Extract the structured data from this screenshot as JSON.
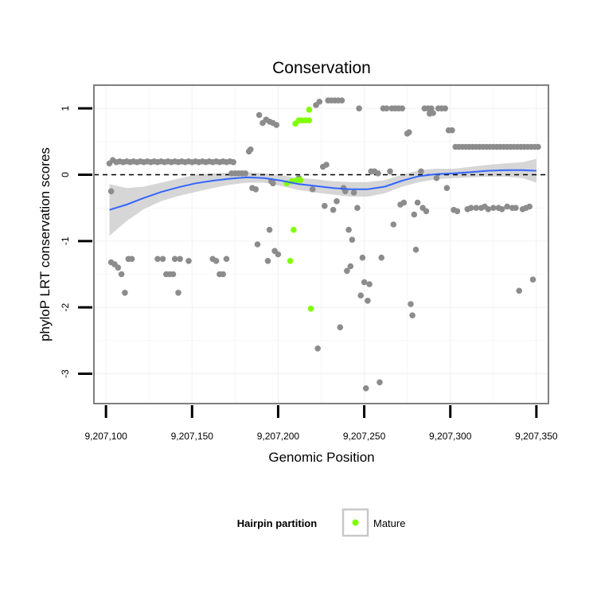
{
  "chart_data": {
    "type": "scatter",
    "title": "Conservation",
    "xlabel": "Genomic Position",
    "ylabel": "phyloP LRT conservation scores",
    "xlim": [
      9207093,
      9207357
    ],
    "ylim": [
      -3.45,
      1.35
    ],
    "x_ticks": [
      9207100,
      9207150,
      9207200,
      9207250,
      9207300,
      9207350
    ],
    "x_tick_labels": [
      "9,207,100",
      "9,207,150",
      "9,207,200",
      "9,207,250",
      "9,207,300",
      "9,207,350"
    ],
    "y_ticks": [
      -3,
      -2,
      -1,
      0,
      1
    ],
    "y_tick_labels": [
      "-3",
      "-2",
      "-1",
      "0",
      "1"
    ],
    "reference_line": {
      "y": 0,
      "style": "dashed",
      "color": "#000000"
    },
    "colors": {
      "background": "#ffffff",
      "grid": "#f2f2f2",
      "other": "#8c8c8c",
      "mature": "#80ff00",
      "smooth": "#3366ff",
      "ribbon": "#c8c8c8",
      "border": "#7f7f7f"
    },
    "legend": {
      "title": "Hairpin partition",
      "position": "bottom",
      "entries": [
        {
          "label": "Mature",
          "color": "#80ff00"
        }
      ]
    },
    "series": [
      {
        "name": "Other",
        "color": "#8c8c8c",
        "points": [
          [
            9207102,
            0.17
          ],
          [
            9207104,
            0.22
          ],
          [
            9207106,
            0.19
          ],
          [
            9207108,
            0.2
          ],
          [
            9207110,
            0.19
          ],
          [
            9207112,
            0.2
          ],
          [
            9207114,
            0.19
          ],
          [
            9207116,
            0.2
          ],
          [
            9207118,
            0.19
          ],
          [
            9207120,
            0.2
          ],
          [
            9207122,
            0.19
          ],
          [
            9207124,
            0.2
          ],
          [
            9207126,
            0.19
          ],
          [
            9207128,
            0.2
          ],
          [
            9207130,
            0.19
          ],
          [
            9207132,
            0.2
          ],
          [
            9207134,
            0.19
          ],
          [
            9207136,
            0.2
          ],
          [
            9207138,
            0.19
          ],
          [
            9207140,
            0.2
          ],
          [
            9207142,
            0.19
          ],
          [
            9207144,
            0.2
          ],
          [
            9207146,
            0.19
          ],
          [
            9207148,
            0.2
          ],
          [
            9207150,
            0.19
          ],
          [
            9207152,
            0.2
          ],
          [
            9207154,
            0.19
          ],
          [
            9207156,
            0.2
          ],
          [
            9207158,
            0.19
          ],
          [
            9207160,
            0.2
          ],
          [
            9207162,
            0.19
          ],
          [
            9207164,
            0.2
          ],
          [
            9207166,
            0.19
          ],
          [
            9207168,
            0.2
          ],
          [
            9207170,
            0.19
          ],
          [
            9207172,
            0.2
          ],
          [
            9207174,
            0.19
          ],
          [
            9207103,
            -0.25
          ],
          [
            9207103,
            -1.32
          ],
          [
            9207105,
            -1.35
          ],
          [
            9207107,
            -1.4
          ],
          [
            9207109,
            -1.5
          ],
          [
            9207111,
            -1.78
          ],
          [
            9207113,
            -1.27
          ],
          [
            9207115,
            -1.27
          ],
          [
            9207130,
            -1.27
          ],
          [
            9207133,
            -1.27
          ],
          [
            9207135,
            -1.5
          ],
          [
            9207137,
            -1.5
          ],
          [
            9207139,
            -1.5
          ],
          [
            9207140,
            -1.27
          ],
          [
            9207143,
            -1.27
          ],
          [
            9207142,
            -1.78
          ],
          [
            9207148,
            -1.3
          ],
          [
            9207162,
            -1.27
          ],
          [
            9207164,
            -1.3
          ],
          [
            9207166,
            -1.5
          ],
          [
            9207168,
            -1.5
          ],
          [
            9207170,
            -1.27
          ],
          [
            9207173,
            0.02
          ],
          [
            9207175,
            0.02
          ],
          [
            9207177,
            0.02
          ],
          [
            9207179,
            0.02
          ],
          [
            9207181,
            0.02
          ],
          [
            9207183,
            0.35
          ],
          [
            9207184,
            0.38
          ],
          [
            9207185,
            -0.2
          ],
          [
            9207187,
            -0.22
          ],
          [
            9207188,
            -1.05
          ],
          [
            9207189,
            0.9
          ],
          [
            9207191,
            0.78
          ],
          [
            9207193,
            0.83
          ],
          [
            9207195,
            0.8
          ],
          [
            9207197,
            0.78
          ],
          [
            9207199,
            0.75
          ],
          [
            9207194,
            -1.3
          ],
          [
            9207195,
            -0.83
          ],
          [
            9207196,
            -0.1
          ],
          [
            9207197,
            -0.13
          ],
          [
            9207198,
            -1.15
          ],
          [
            9207200,
            -1.2
          ],
          [
            9207212,
            -0.05
          ],
          [
            9207220,
            -0.22
          ],
          [
            9207222,
            1.05
          ],
          [
            9207223,
            -2.62
          ],
          [
            9207224,
            1.1
          ],
          [
            9207226,
            0.12
          ],
          [
            9207227,
            -0.47
          ],
          [
            9207228,
            0.15
          ],
          [
            9207229,
            1.12
          ],
          [
            9207231,
            1.12
          ],
          [
            9207232,
            -0.53
          ],
          [
            9207233,
            1.12
          ],
          [
            9207234,
            -0.4
          ],
          [
            9207235,
            1.12
          ],
          [
            9207236,
            -2.3
          ],
          [
            9207237,
            1.12
          ],
          [
            9207238,
            -0.2
          ],
          [
            9207239,
            -0.25
          ],
          [
            9207240,
            -1.45
          ],
          [
            9207241,
            -0.83
          ],
          [
            9207242,
            -1.38
          ],
          [
            9207243,
            -0.98
          ],
          [
            9207244,
            -0.27
          ],
          [
            9207246,
            -0.5
          ],
          [
            9207247,
            1.0
          ],
          [
            9207248,
            -1.82
          ],
          [
            9207249,
            -1.25
          ],
          [
            9207250,
            -1.62
          ],
          [
            9207251,
            -3.22
          ],
          [
            9207252,
            -1.9
          ],
          [
            9207253,
            -1.65
          ],
          [
            9207254,
            0.05
          ],
          [
            9207256,
            0.05
          ],
          [
            9207258,
            0.02
          ],
          [
            9207259,
            -3.13
          ],
          [
            9207260,
            -1.25
          ],
          [
            9207261,
            1.0
          ],
          [
            9207263,
            1.0
          ],
          [
            9207265,
            0.05
          ],
          [
            9207266,
            1.0
          ],
          [
            9207267,
            -0.75
          ],
          [
            9207268,
            1.0
          ],
          [
            9207270,
            1.0
          ],
          [
            9207271,
            -0.45
          ],
          [
            9207272,
            1.0
          ],
          [
            9207273,
            -0.42
          ],
          [
            9207275,
            0.62
          ],
          [
            9207276,
            0.64
          ],
          [
            9207277,
            -1.95
          ],
          [
            9207278,
            -2.12
          ],
          [
            9207279,
            -0.6
          ],
          [
            9207280,
            -1.13
          ],
          [
            9207281,
            -0.42
          ],
          [
            9207283,
            0.05
          ],
          [
            9207284,
            -0.5
          ],
          [
            9207285,
            1.0
          ],
          [
            9207287,
            1.0
          ],
          [
            9207286,
            -0.55
          ],
          [
            9207288,
            0.92
          ],
          [
            9207289,
            1.0
          ],
          [
            9207290,
            0.93
          ],
          [
            9207292,
            -0.05
          ],
          [
            9207293,
            1.0
          ],
          [
            9207295,
            1.0
          ],
          [
            9207297,
            1.0
          ],
          [
            9207298,
            -0.2
          ],
          [
            9207299,
            0.67
          ],
          [
            9207301,
            0.67
          ],
          [
            9207302,
            -0.53
          ],
          [
            9207303,
            0.42
          ],
          [
            9207304,
            -0.55
          ],
          [
            9207305,
            0.42
          ],
          [
            9207307,
            0.42
          ],
          [
            9207309,
            0.42
          ],
          [
            9207311,
            0.42
          ],
          [
            9207313,
            0.42
          ],
          [
            9207315,
            0.42
          ],
          [
            9207317,
            0.42
          ],
          [
            9207319,
            0.42
          ],
          [
            9207321,
            0.42
          ],
          [
            9207323,
            0.42
          ],
          [
            9207325,
            0.42
          ],
          [
            9207327,
            0.42
          ],
          [
            9207329,
            0.42
          ],
          [
            9207331,
            0.42
          ],
          [
            9207333,
            0.42
          ],
          [
            9207335,
            0.42
          ],
          [
            9207337,
            0.42
          ],
          [
            9207339,
            0.42
          ],
          [
            9207341,
            0.42
          ],
          [
            9207343,
            0.42
          ],
          [
            9207345,
            0.42
          ],
          [
            9207347,
            0.42
          ],
          [
            9207349,
            0.42
          ],
          [
            9207351,
            0.42
          ],
          [
            9207310,
            -0.52
          ],
          [
            9207312,
            -0.5
          ],
          [
            9207315,
            -0.5
          ],
          [
            9207318,
            -0.5
          ],
          [
            9207320,
            -0.48
          ],
          [
            9207322,
            -0.52
          ],
          [
            9207325,
            -0.5
          ],
          [
            9207328,
            -0.5
          ],
          [
            9207330,
            -0.52
          ],
          [
            9207333,
            -0.48
          ],
          [
            9207336,
            -0.5
          ],
          [
            9207338,
            -0.5
          ],
          [
            9207340,
            -1.75
          ],
          [
            9207342,
            -0.52
          ],
          [
            9207344,
            -0.5
          ],
          [
            9207346,
            -0.48
          ],
          [
            9207348,
            -1.58
          ]
        ]
      },
      {
        "name": "Mature",
        "color": "#80ff00",
        "points": [
          [
            9207205,
            -0.13
          ],
          [
            9207207,
            -1.3
          ],
          [
            9207208,
            -0.1
          ],
          [
            9207209,
            -0.83
          ],
          [
            9207210,
            0.77
          ],
          [
            9207211,
            -0.08
          ],
          [
            9207212,
            0.82
          ],
          [
            9207213,
            -0.08
          ],
          [
            9207214,
            0.82
          ],
          [
            9207216,
            0.82
          ],
          [
            9207218,
            0.82
          ],
          [
            9207218,
            0.98
          ],
          [
            9207219,
            -2.02
          ]
        ]
      }
    ],
    "smooth": {
      "method": "loess",
      "color": "#3366ff",
      "x": [
        9207102,
        9207112,
        9207122,
        9207132,
        9207142,
        9207152,
        9207162,
        9207172,
        9207182,
        9207192,
        9207202,
        9207212,
        9207222,
        9207232,
        9207242,
        9207252,
        9207262,
        9207272,
        9207282,
        9207292,
        9207302,
        9207312,
        9207322,
        9207332,
        9207342,
        9207350
      ],
      "y": [
        -0.53,
        -0.45,
        -0.35,
        -0.26,
        -0.19,
        -0.13,
        -0.09,
        -0.06,
        -0.04,
        -0.05,
        -0.09,
        -0.14,
        -0.17,
        -0.2,
        -0.22,
        -0.22,
        -0.18,
        -0.09,
        -0.02,
        0.01,
        0.02,
        0.04,
        0.06,
        0.07,
        0.07,
        0.06
      ],
      "lower": [
        -0.92,
        -0.7,
        -0.52,
        -0.4,
        -0.32,
        -0.26,
        -0.2,
        -0.15,
        -0.12,
        -0.12,
        -0.17,
        -0.23,
        -0.27,
        -0.3,
        -0.33,
        -0.33,
        -0.28,
        -0.18,
        -0.11,
        -0.07,
        -0.05,
        -0.04,
        -0.03,
        -0.03,
        -0.05,
        -0.12
      ],
      "upper": [
        -0.14,
        -0.2,
        -0.18,
        -0.12,
        -0.06,
        0.0,
        0.02,
        0.03,
        0.04,
        0.02,
        -0.01,
        -0.05,
        -0.07,
        -0.1,
        -0.11,
        -0.11,
        -0.08,
        0.0,
        0.07,
        0.09,
        0.09,
        0.12,
        0.15,
        0.17,
        0.19,
        0.24
      ]
    }
  }
}
